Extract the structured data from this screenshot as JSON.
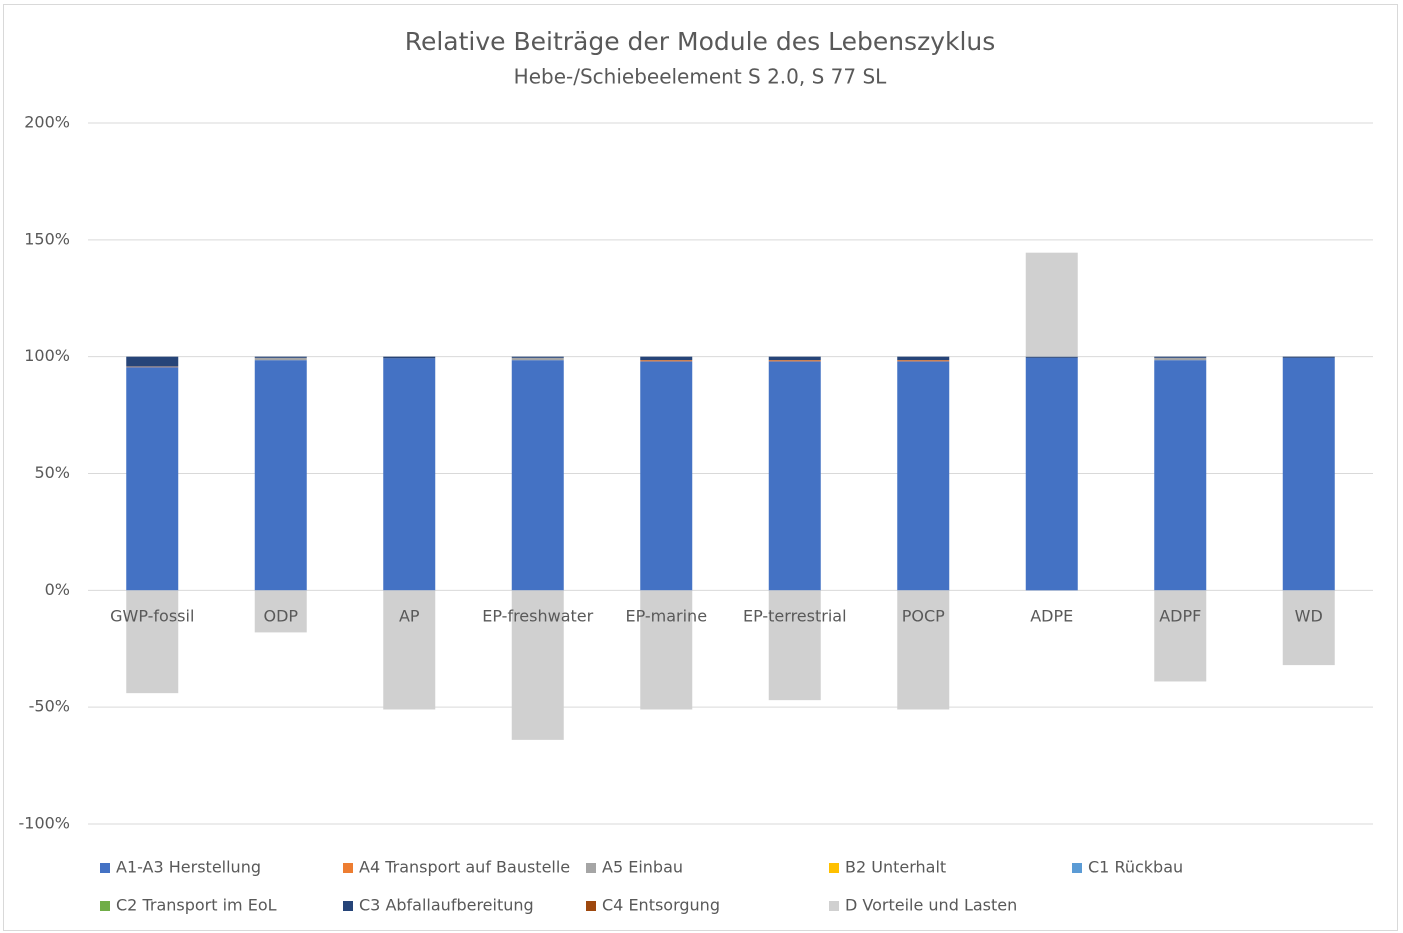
{
  "chart_data": {
    "type": "stacked_bar",
    "title": "Relative Beiträge der Module des Lebenszyklus",
    "subtitle": "Hebe-/Schiebeelement S 2.0, S 77 SL",
    "categories": [
      "GWP-fossil",
      "ODP",
      "AP",
      "EP-freshwater",
      "EP-marine",
      "EP-terrestrial",
      "POCP",
      "ADPE",
      "ADPF",
      "WD"
    ],
    "ylim": [
      -100,
      200
    ],
    "yticks": [
      {
        "value": -100,
        "label": "-100%"
      },
      {
        "value": -50,
        "label": "-50%"
      },
      {
        "value": 0,
        "label": "0%"
      },
      {
        "value": 50,
        "label": "50%"
      },
      {
        "value": 100,
        "label": "100%"
      },
      {
        "value": 150,
        "label": "150%"
      },
      {
        "value": 200,
        "label": "200%"
      }
    ],
    "grid": true,
    "legend": "bottom",
    "series": [
      {
        "name": "A1-A3 Herstellung",
        "color": "#4472c4",
        "values": [
          95.5,
          98.5,
          99.3,
          98.5,
          98,
          98,
          98,
          99.5,
          98.5,
          99.5
        ]
      },
      {
        "name": "A4 Transport auf Baustelle",
        "color": "#ed7d31",
        "values": [
          0.2,
          0,
          0,
          0,
          0.5,
          0.5,
          0.5,
          0,
          0,
          0
        ]
      },
      {
        "name": "A5 Einbau",
        "color": "#a5a5a5",
        "values": [
          0.1,
          1,
          0,
          1,
          0,
          0,
          0,
          0,
          1,
          0
        ]
      },
      {
        "name": "B2 Unterhalt",
        "color": "#ffc000",
        "values": [
          0,
          0,
          0,
          0,
          0,
          0,
          0,
          0,
          0,
          0
        ]
      },
      {
        "name": "C1 Rückbau",
        "color": "#5b9bd5",
        "values": [
          0,
          0,
          0,
          0,
          0,
          0,
          0,
          0,
          0,
          0
        ]
      },
      {
        "name": "C2 Transport im EoL",
        "color": "#70ad47",
        "values": [
          0,
          0,
          0,
          0,
          0,
          0,
          0,
          0,
          0,
          0
        ]
      },
      {
        "name": "C3 Abfallaufbereitung",
        "color": "#264478",
        "values": [
          4.2,
          0.5,
          0.7,
          0.5,
          1.5,
          1.5,
          1.5,
          0.5,
          0.5,
          0.5
        ]
      },
      {
        "name": "C4 Entsorgung",
        "color": "#9e480e",
        "values": [
          0,
          0,
          0,
          0,
          0,
          0,
          0,
          0,
          0,
          0
        ]
      },
      {
        "name": "D Vorteile und Lasten",
        "color": "#d0d0d0",
        "values": [
          -44,
          -18,
          -51,
          -64,
          -51,
          -47,
          -51,
          44.5,
          -39,
          -32
        ]
      }
    ]
  }
}
